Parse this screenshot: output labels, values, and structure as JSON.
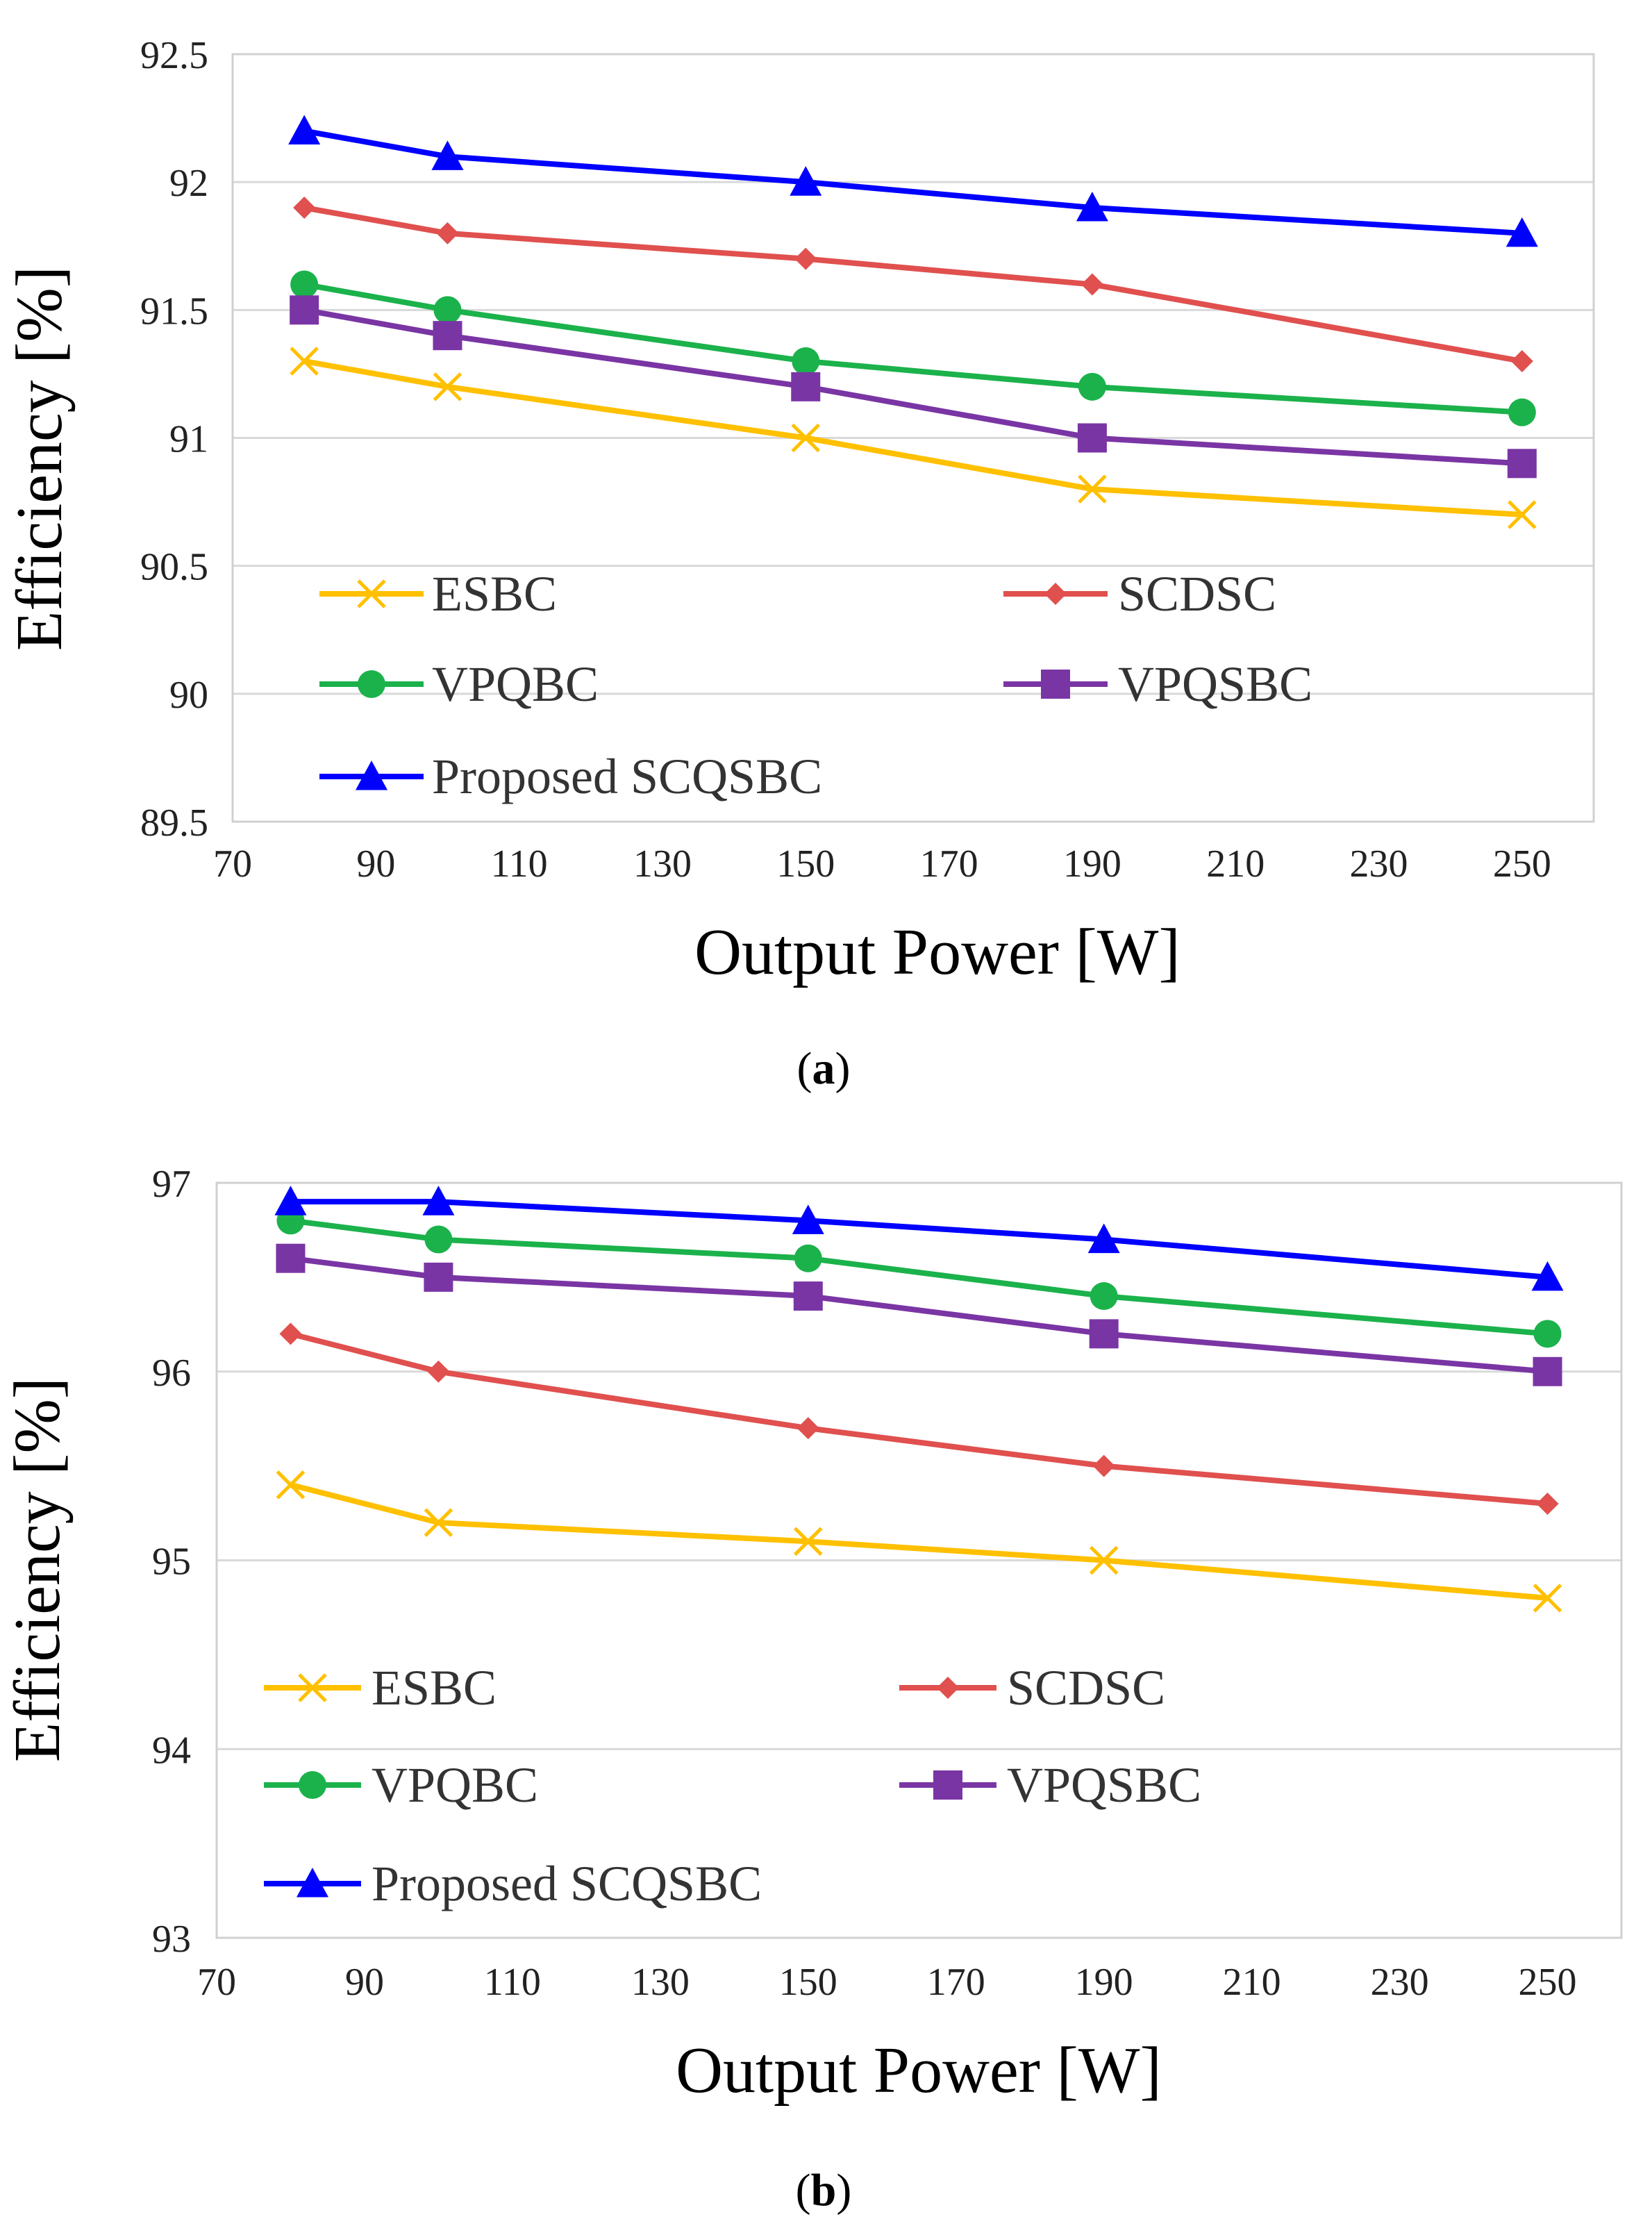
{
  "colors": {
    "ESBC": "#FFC000",
    "SCDSC": "#E0504E",
    "VPQBC": "#1BB24B",
    "VPQSBC": "#7A35A4",
    "Proposed SCQSBC": "#0000FF"
  },
  "chart_data": [
    {
      "type": "line",
      "caption_letter": "a",
      "xlabel": "Output Power [W]",
      "ylabel": "Efficiency [%]",
      "xlim": [
        70,
        260
      ],
      "ylim": [
        89.5,
        92.5
      ],
      "xticks": [
        70,
        90,
        110,
        130,
        150,
        170,
        190,
        210,
        230,
        250
      ],
      "yticks": [
        89.5,
        90,
        90.5,
        91,
        91.5,
        92,
        92.5
      ],
      "ytick_labels": [
        "89.5",
        "90",
        "90.5",
        "91",
        "91.5",
        "92",
        "92.5"
      ],
      "x": [
        80,
        100,
        150,
        190,
        250
      ],
      "legend_position": "lower-left inside",
      "series": [
        {
          "name": "ESBC",
          "marker": "x",
          "values": [
            91.3,
            91.2,
            91.0,
            90.8,
            90.7
          ]
        },
        {
          "name": "SCDSC",
          "marker": "diamond",
          "values": [
            91.9,
            91.8,
            91.7,
            91.6,
            91.3
          ]
        },
        {
          "name": "VPQBC",
          "marker": "circle",
          "values": [
            91.6,
            91.5,
            91.3,
            91.2,
            91.1
          ]
        },
        {
          "name": "VPQSBC",
          "marker": "square",
          "values": [
            91.5,
            91.4,
            91.2,
            91.0,
            90.9
          ]
        },
        {
          "name": "Proposed SCQSBC",
          "marker": "triangle",
          "values": [
            92.2,
            92.1,
            92.0,
            91.9,
            91.8
          ]
        }
      ]
    },
    {
      "type": "line",
      "caption_letter": "b",
      "xlabel": "Output Power [W]",
      "ylabel": "Efficiency [%]",
      "xlim": [
        70,
        260
      ],
      "ylim": [
        93,
        97
      ],
      "xticks": [
        70,
        90,
        110,
        130,
        150,
        170,
        190,
        210,
        230,
        250
      ],
      "yticks": [
        93,
        94,
        95,
        96,
        97
      ],
      "ytick_labels": [
        "93",
        "94",
        "95",
        "96",
        "97"
      ],
      "x": [
        80,
        100,
        150,
        190,
        250
      ],
      "legend_position": "lower-left inside",
      "series": [
        {
          "name": "ESBC",
          "marker": "x",
          "values": [
            95.4,
            95.2,
            95.1,
            95.0,
            94.8
          ]
        },
        {
          "name": "SCDSC",
          "marker": "diamond",
          "values": [
            96.2,
            96.0,
            95.7,
            95.5,
            95.3
          ]
        },
        {
          "name": "VPQBC",
          "marker": "circle",
          "values": [
            96.8,
            96.7,
            96.6,
            96.4,
            96.2
          ]
        },
        {
          "name": "VPQSBC",
          "marker": "square",
          "values": [
            96.6,
            96.5,
            96.4,
            96.2,
            96.0
          ]
        },
        {
          "name": "Proposed SCQSBC",
          "marker": "triangle",
          "values": [
            96.9,
            96.9,
            96.8,
            96.7,
            96.5
          ]
        }
      ]
    }
  ]
}
